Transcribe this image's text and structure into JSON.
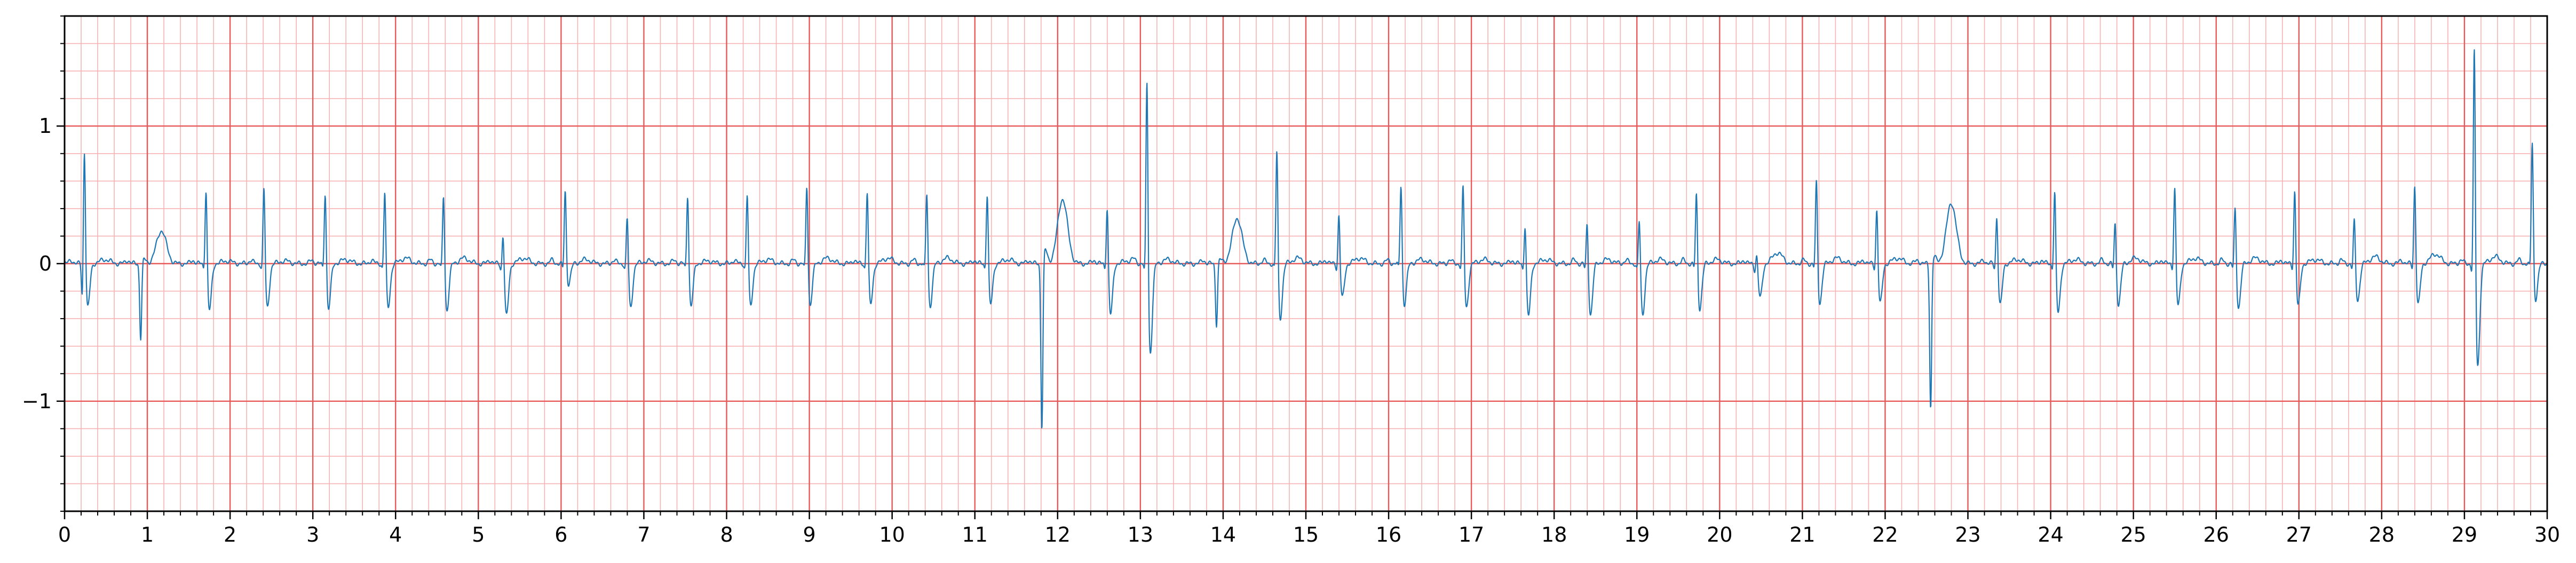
{
  "chart_data": {
    "type": "line",
    "title": "",
    "xlabel": "",
    "ylabel": "",
    "xlim": [
      0,
      30
    ],
    "ylim": [
      -1.8,
      1.8
    ],
    "x_ticks": [
      "0",
      "1",
      "2",
      "3",
      "4",
      "5",
      "6",
      "7",
      "8",
      "9",
      "10",
      "11",
      "12",
      "13",
      "14",
      "15",
      "16",
      "17",
      "18",
      "19",
      "20",
      "21",
      "22",
      "23",
      "24",
      "25",
      "26",
      "27",
      "28",
      "29",
      "30"
    ],
    "y_ticks": [
      "1",
      "0",
      "−1"
    ],
    "y_tick_values": [
      1,
      0,
      -1
    ],
    "grid": {
      "major_x": 1,
      "minor_x": 0.2,
      "major_y": 1,
      "minor_y": 0.2,
      "major_color": "#e85a5a",
      "minor_color": "#f7b3b3"
    },
    "line_color": "#1f77b4",
    "series": [
      {
        "name": "",
        "beats": [
          {
            "t": 0.24,
            "r": 0.91,
            "s": -0.32,
            "q": -0.28,
            "tw": 0.03
          },
          {
            "t": 0.92,
            "r": -0.55,
            "s": 0.03,
            "q": 0.0,
            "tw": 0.24
          },
          {
            "t": 1.71,
            "r": 0.62,
            "s": -0.34,
            "q": -0.05,
            "tw": 0.02
          },
          {
            "t": 2.41,
            "r": 0.63,
            "s": -0.32,
            "q": -0.05,
            "tw": 0.02
          },
          {
            "t": 3.15,
            "r": 0.6,
            "s": -0.33,
            "q": -0.05,
            "tw": 0.03
          },
          {
            "t": 3.87,
            "r": 0.6,
            "s": -0.32,
            "q": -0.05,
            "tw": 0.04
          },
          {
            "t": 4.58,
            "r": 0.58,
            "s": -0.34,
            "q": -0.05,
            "tw": 0.04
          },
          {
            "t": 5.3,
            "r": 0.3,
            "s": -0.38,
            "q": -0.05,
            "tw": 0.04
          },
          {
            "t": 6.05,
            "r": 0.57,
            "s": -0.15,
            "q": -0.06,
            "tw": 0.03
          },
          {
            "t": 6.8,
            "r": 0.41,
            "s": -0.32,
            "q": -0.05,
            "tw": 0.02
          },
          {
            "t": 7.53,
            "r": 0.58,
            "s": -0.31,
            "q": -0.05,
            "tw": 0.02
          },
          {
            "t": 8.25,
            "r": 0.58,
            "s": -0.31,
            "q": -0.05,
            "tw": 0.03
          },
          {
            "t": 8.97,
            "r": 0.64,
            "s": -0.3,
            "q": -0.05,
            "tw": 0.04
          },
          {
            "t": 9.7,
            "r": 0.6,
            "s": -0.3,
            "q": -0.05,
            "tw": 0.04
          },
          {
            "t": 10.42,
            "r": 0.59,
            "s": -0.31,
            "q": -0.05,
            "tw": 0.04
          },
          {
            "t": 11.15,
            "r": 0.58,
            "s": -0.3,
            "q": -0.05,
            "tw": 0.03
          },
          {
            "t": 11.81,
            "r": -1.22,
            "s": 0.1,
            "q": 0.0,
            "tw": 0.47
          },
          {
            "t": 12.6,
            "r": 0.5,
            "s": -0.37,
            "q": -0.05,
            "tw": 0.02
          },
          {
            "t": 13.08,
            "r": 1.5,
            "s": -0.65,
            "q": -0.1,
            "tw": 0.03
          },
          {
            "t": 13.92,
            "r": -0.45,
            "s": 0.03,
            "q": 0.0,
            "tw": 0.33
          },
          {
            "t": 14.65,
            "r": 0.92,
            "s": -0.4,
            "q": -0.05,
            "tw": 0.04
          },
          {
            "t": 15.4,
            "r": 0.42,
            "s": -0.25,
            "q": -0.05,
            "tw": 0.04
          },
          {
            "t": 16.15,
            "r": 0.65,
            "s": -0.3,
            "q": -0.05,
            "tw": 0.03
          },
          {
            "t": 16.9,
            "r": 0.64,
            "s": -0.32,
            "q": -0.05,
            "tw": 0.03
          },
          {
            "t": 17.65,
            "r": 0.37,
            "s": -0.38,
            "q": -0.05,
            "tw": 0.03
          },
          {
            "t": 18.4,
            "r": 0.38,
            "s": -0.37,
            "q": -0.05,
            "tw": 0.03
          },
          {
            "t": 19.03,
            "r": 0.4,
            "s": -0.37,
            "q": -0.05,
            "tw": 0.03
          },
          {
            "t": 19.72,
            "r": 0.59,
            "s": -0.33,
            "q": -0.05,
            "tw": 0.03
          },
          {
            "t": 20.45,
            "r": 0.12,
            "s": -0.25,
            "q": -0.05,
            "tw": 0.08
          },
          {
            "t": 21.17,
            "r": 0.67,
            "s": -0.29,
            "q": -0.05,
            "tw": 0.04
          },
          {
            "t": 21.9,
            "r": 0.47,
            "s": -0.29,
            "q": -0.05,
            "tw": 0.04
          },
          {
            "t": 22.55,
            "r": -1.06,
            "s": 0.05,
            "q": 0.0,
            "tw": 0.44
          },
          {
            "t": 23.35,
            "r": 0.42,
            "s": -0.3,
            "q": -0.05,
            "tw": 0.03
          },
          {
            "t": 24.05,
            "r": 0.61,
            "s": -0.36,
            "q": -0.05,
            "tw": 0.03
          },
          {
            "t": 24.78,
            "r": 0.37,
            "s": -0.3,
            "q": -0.05,
            "tw": 0.04
          },
          {
            "t": 25.5,
            "r": 0.63,
            "s": -0.31,
            "q": -0.05,
            "tw": 0.04
          },
          {
            "t": 26.23,
            "r": 0.48,
            "s": -0.32,
            "q": -0.05,
            "tw": 0.04
          },
          {
            "t": 26.95,
            "r": 0.61,
            "s": -0.31,
            "q": -0.05,
            "tw": 0.03
          },
          {
            "t": 27.67,
            "r": 0.38,
            "s": -0.27,
            "q": -0.05,
            "tw": 0.05
          },
          {
            "t": 28.4,
            "r": 0.65,
            "s": -0.3,
            "q": -0.05,
            "tw": 0.07
          },
          {
            "t": 29.12,
            "r": 1.75,
            "s": -0.75,
            "q": -0.1,
            "tw": 0.05
          },
          {
            "t": 29.82,
            "r": 0.95,
            "s": -0.26,
            "q": -0.05,
            "tw": 0.02
          }
        ]
      }
    ]
  }
}
